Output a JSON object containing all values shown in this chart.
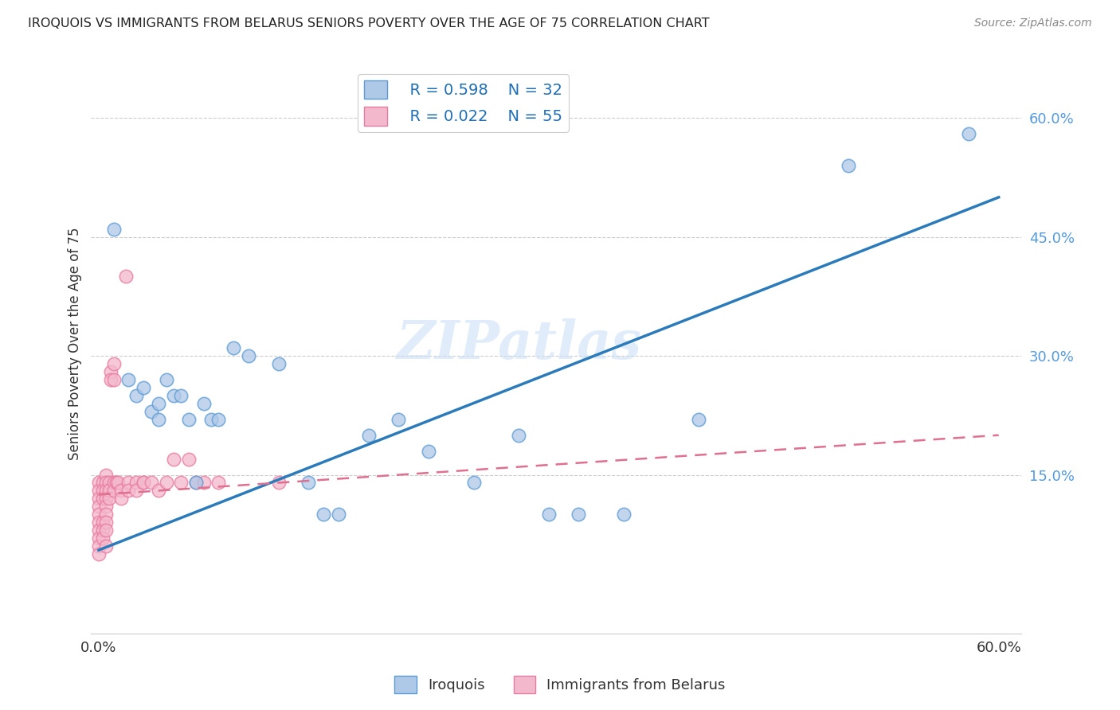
{
  "title": "IROQUOIS VS IMMIGRANTS FROM BELARUS SENIORS POVERTY OVER THE AGE OF 75 CORRELATION CHART",
  "source": "Source: ZipAtlas.com",
  "ylabel": "Seniors Poverty Over the Age of 75",
  "xlabel": "",
  "xlim": [
    -0.005,
    0.615
  ],
  "ylim": [
    -0.05,
    0.68
  ],
  "xticks": [
    0.0,
    0.1,
    0.2,
    0.3,
    0.4,
    0.5,
    0.6
  ],
  "xticklabels": [
    "0.0%",
    "",
    "",
    "",
    "",
    "",
    "60.0%"
  ],
  "yticks_right": [
    0.15,
    0.3,
    0.45,
    0.6
  ],
  "ytick_right_labels": [
    "15.0%",
    "30.0%",
    "45.0%",
    "60.0%"
  ],
  "iroquois_color": "#aec8e8",
  "belarus_color": "#f4b8cc",
  "iroquois_edge_color": "#5b9bd5",
  "belarus_edge_color": "#e87ba0",
  "iroquois_line_color": "#2b7bba",
  "belarus_line_color": "#e07090",
  "legend_R_iroquois": "R = 0.598",
  "legend_N_iroquois": "N = 32",
  "legend_R_belarus": "R = 0.022",
  "legend_N_belarus": "N = 55",
  "watermark": "ZIPatlas",
  "iroquois_x": [
    0.01,
    0.02,
    0.025,
    0.03,
    0.035,
    0.04,
    0.04,
    0.045,
    0.05,
    0.055,
    0.06,
    0.065,
    0.07,
    0.075,
    0.08,
    0.09,
    0.1,
    0.12,
    0.14,
    0.15,
    0.16,
    0.18,
    0.2,
    0.22,
    0.25,
    0.28,
    0.3,
    0.32,
    0.35,
    0.4,
    0.5,
    0.58
  ],
  "iroquois_y": [
    0.46,
    0.27,
    0.25,
    0.26,
    0.23,
    0.24,
    0.22,
    0.27,
    0.25,
    0.25,
    0.22,
    0.14,
    0.24,
    0.22,
    0.22,
    0.31,
    0.3,
    0.29,
    0.14,
    0.1,
    0.1,
    0.2,
    0.22,
    0.18,
    0.14,
    0.2,
    0.1,
    0.1,
    0.1,
    0.22,
    0.54,
    0.58
  ],
  "belarus_x": [
    0.0,
    0.0,
    0.0,
    0.0,
    0.0,
    0.0,
    0.0,
    0.0,
    0.0,
    0.0,
    0.003,
    0.003,
    0.003,
    0.003,
    0.003,
    0.003,
    0.005,
    0.005,
    0.005,
    0.005,
    0.005,
    0.005,
    0.005,
    0.005,
    0.005,
    0.007,
    0.007,
    0.007,
    0.008,
    0.008,
    0.01,
    0.01,
    0.01,
    0.01,
    0.012,
    0.013,
    0.015,
    0.015,
    0.018,
    0.02,
    0.02,
    0.025,
    0.025,
    0.03,
    0.03,
    0.035,
    0.04,
    0.045,
    0.05,
    0.055,
    0.06,
    0.065,
    0.07,
    0.08,
    0.12
  ],
  "belarus_y": [
    0.14,
    0.13,
    0.12,
    0.11,
    0.1,
    0.09,
    0.08,
    0.07,
    0.06,
    0.05,
    0.14,
    0.13,
    0.12,
    0.09,
    0.08,
    0.07,
    0.15,
    0.14,
    0.13,
    0.12,
    0.11,
    0.1,
    0.09,
    0.08,
    0.06,
    0.14,
    0.13,
    0.12,
    0.28,
    0.27,
    0.29,
    0.27,
    0.14,
    0.13,
    0.14,
    0.14,
    0.13,
    0.12,
    0.4,
    0.14,
    0.13,
    0.14,
    0.13,
    0.14,
    0.14,
    0.14,
    0.13,
    0.14,
    0.17,
    0.14,
    0.17,
    0.14,
    0.14,
    0.14,
    0.14
  ],
  "iroquois_trend": [
    0.0,
    0.6,
    0.055,
    0.5
  ],
  "belarus_trend": [
    0.0,
    0.6,
    0.125,
    0.2
  ],
  "background_color": "#ffffff",
  "grid_color": "#cccccc"
}
